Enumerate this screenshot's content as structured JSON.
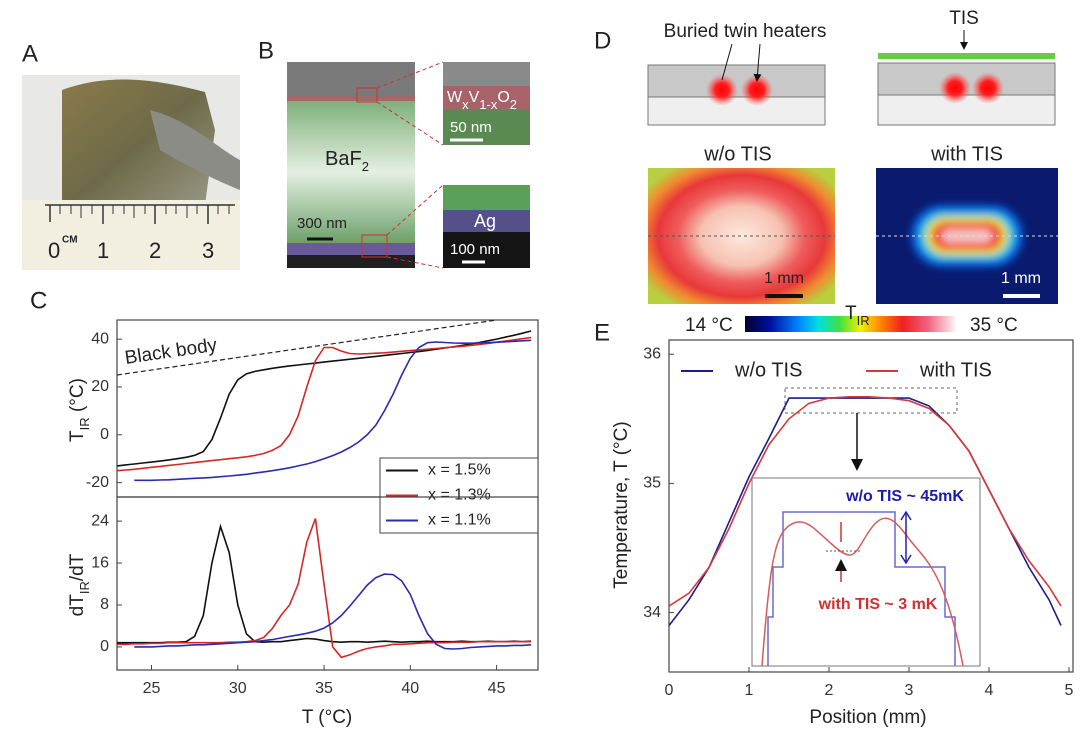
{
  "panel_labels": [
    "A",
    "B",
    "C",
    "D",
    "E"
  ],
  "panel_a": {
    "ruler": [
      "0",
      "CM",
      "1",
      "2",
      "3"
    ]
  },
  "panel_b": {
    "material": [
      "BaF",
      "2"
    ],
    "film": [
      "W",
      "x",
      "V",
      "1-x",
      "O",
      "2"
    ],
    "film_scale": "50 nm",
    "main_scale": "300 nm",
    "metal": "Ag",
    "metal_scale": "100 nm"
  },
  "panel_d": {
    "heaters_label": "Buried twin heaters",
    "tis_label": "TIS",
    "left_title": "w/o TIS",
    "right_title": "with TIS",
    "left_scale": "1 mm",
    "right_scale": "1 mm",
    "colorbar": {
      "min": "14 °C",
      "label": [
        "T",
        "IR"
      ],
      "max": "35 °C"
    }
  },
  "panel_e_inset": {
    "wo": "w/o TIS ~ 45mK",
    "with": "with TIS ~ 3 mK"
  },
  "chart_data": [
    {
      "type": "line",
      "y_label": [
        "T",
        "IR",
        " (°C)"
      ],
      "xlim": [
        23,
        47.4
      ],
      "ylim": [
        -26,
        48
      ],
      "yticks": [
        -20,
        0,
        20,
        40
      ],
      "reference": {
        "label": "Black body",
        "x": [
          23,
          45
        ],
        "y": [
          25,
          48
        ]
      },
      "legend": "lower right",
      "x": [
        23,
        23.5,
        24,
        24.5,
        25,
        25.5,
        26,
        26.5,
        27,
        27.5,
        28,
        28.5,
        29,
        29.5,
        30,
        30.5,
        31,
        31.5,
        32,
        32.5,
        33,
        33.5,
        34,
        34.5,
        35,
        35.5,
        36,
        36.5,
        37,
        37.5,
        38,
        38.5,
        39,
        39.5,
        40,
        40.5,
        41,
        41.5,
        42,
        42.5,
        43,
        43.5,
        44,
        44.5,
        45,
        45.5,
        46,
        46.5,
        47
      ],
      "series": [
        {
          "name": "x = 1.5%",
          "color": "#111111",
          "values": [
            -13,
            -12.6,
            -12.2,
            -11.8,
            -11.4,
            -11,
            -10.5,
            -10,
            -9.4,
            -8.6,
            -7,
            -2,
            7,
            17,
            23,
            25.5,
            26.5,
            27.2,
            27.8,
            28.3,
            28.8,
            29.2,
            29.6,
            30,
            30.4,
            30.8,
            31.2,
            31.6,
            32,
            32.4,
            32.8,
            33.2,
            33.6,
            34,
            34.4,
            34.8,
            35.3,
            35.8,
            36.3,
            36.8,
            37.4,
            38,
            38.6,
            39.3,
            40,
            40.8,
            41.6,
            42.5,
            43.4
          ]
        },
        {
          "name": "x = 1.3%",
          "color": "#d62728",
          "values": [
            -15,
            -14.7,
            -14.4,
            -14,
            -13.6,
            -13.2,
            -12.8,
            -12.4,
            -12,
            -11.6,
            -11.2,
            -10.8,
            -10.4,
            -10,
            -9.6,
            -9.2,
            -8.6,
            -7.8,
            -6.5,
            -4.5,
            0,
            8,
            20,
            31,
            36.5,
            36.5,
            35,
            34,
            33.8,
            33.9,
            34.1,
            34.3,
            34.6,
            34.9,
            35.2,
            35.5,
            35.8,
            36.1,
            36.4,
            36.7,
            37,
            37.4,
            37.8,
            38.2,
            38.7,
            39.2,
            39.7,
            40.2,
            40.7
          ]
        },
        {
          "name": "x = 1.1%",
          "color": "#2b2bb0",
          "values": [
            null,
            null,
            -19,
            -19,
            -19,
            -18.9,
            -18.8,
            -18.6,
            -18.4,
            -18.2,
            -18,
            -17.8,
            -17.5,
            -17.2,
            -16.9,
            -16.5,
            -16,
            -15.5,
            -15,
            -14.4,
            -13.8,
            -13,
            -12.2,
            -11.2,
            -10,
            -8.7,
            -7.2,
            -5.3,
            -3,
            0,
            4,
            10,
            17,
            25,
            32,
            36.5,
            38.5,
            38.8,
            38.6,
            38.4,
            38.3,
            38.3,
            38.4,
            38.5,
            38.7,
            38.9,
            39.1,
            39.3,
            39.5
          ]
        }
      ]
    },
    {
      "type": "line",
      "x_label": "T (°C)",
      "y_label": [
        "dT",
        "IR",
        "/dT"
      ],
      "xlim": [
        23,
        47.4
      ],
      "ylim": [
        -4.4,
        28.6
      ],
      "yticks": [
        0,
        8,
        16,
        24
      ],
      "xticks": [
        25,
        30,
        35,
        40,
        45
      ],
      "x": [
        23,
        23.5,
        24,
        24.5,
        25,
        25.5,
        26,
        26.5,
        27,
        27.5,
        28,
        28.5,
        29,
        29.5,
        30,
        30.5,
        31,
        31.5,
        32,
        32.5,
        33,
        33.5,
        34,
        34.5,
        35,
        35.5,
        36,
        36.5,
        37,
        37.5,
        38,
        38.5,
        39,
        39.5,
        40,
        40.5,
        41,
        41.5,
        42,
        42.5,
        43,
        43.5,
        44,
        44.5,
        45,
        45.5,
        46,
        46.5,
        47
      ],
      "series": [
        {
          "color": "#111111",
          "values": [
            0.8,
            0.8,
            0.8,
            0.8,
            0.8,
            0.8,
            0.9,
            0.9,
            1,
            2,
            6,
            16,
            23,
            18,
            8,
            2.5,
            1,
            0.9,
            1,
            1,
            1.2,
            1.4,
            1.6,
            1.5,
            1.2,
            1,
            0.9,
            1,
            1,
            0.9,
            1,
            1.1,
            1,
            0.9,
            1,
            1,
            1.1,
            1,
            1,
            1,
            1.1,
            1,
            1,
            1.1,
            1,
            1,
            1.1,
            1,
            1.1
          ]
        },
        {
          "color": "#d62728",
          "values": [
            0.5,
            0.5,
            0.6,
            0.6,
            0.7,
            0.7,
            0.8,
            0.8,
            0.8,
            0.8,
            0.8,
            0.8,
            0.8,
            0.9,
            0.9,
            1,
            1.2,
            1.8,
            3.5,
            6,
            8,
            12,
            20,
            24.5,
            12,
            0,
            -2,
            -1.5,
            -0.8,
            -0.3,
            0,
            0.2,
            0.5,
            0.5,
            0.6,
            0.7,
            0.8,
            0.8,
            0.8,
            0.9,
            0.9,
            0.9,
            1,
            1,
            1,
            1,
            1,
            1,
            1
          ]
        },
        {
          "color": "#2b2bb0",
          "values": [
            null,
            null,
            0,
            0,
            0,
            0.1,
            0.2,
            0.2,
            0.3,
            0.4,
            0.4,
            0.5,
            0.6,
            0.7,
            0.8,
            0.9,
            1,
            1.2,
            1.4,
            1.7,
            2,
            2.3,
            2.6,
            3,
            3.6,
            4.6,
            6,
            7.8,
            9.8,
            11.8,
            13.2,
            13.9,
            13.8,
            12.6,
            10,
            6,
            2.5,
            0.5,
            -0.3,
            -0.4,
            -0.3,
            -0.1,
            0,
            0.1,
            0.2,
            0.2,
            0.3,
            0.3,
            0.4
          ]
        }
      ]
    },
    {
      "type": "line",
      "x_label": "Position (mm)",
      "y_label": "Temperature, T (°C)",
      "xlim": [
        0,
        5.05
      ],
      "ylim": [
        33.54,
        36.11
      ],
      "xticks": [
        0,
        1,
        2,
        3,
        4,
        5
      ],
      "yticks": [
        34,
        35,
        36
      ],
      "legend": "top",
      "x": [
        0,
        0.25,
        0.5,
        0.75,
        1,
        1.25,
        1.5,
        1.75,
        2,
        2.25,
        2.5,
        2.75,
        3,
        3.25,
        3.5,
        3.75,
        4,
        4.25,
        4.5,
        4.75,
        4.9
      ],
      "series": [
        {
          "name": "w/o TIS",
          "color": "#1c1c8c",
          "values": [
            33.9,
            34.1,
            34.35,
            34.7,
            35.05,
            35.35,
            35.66,
            35.66,
            35.66,
            35.66,
            35.66,
            35.66,
            35.66,
            35.6,
            35.45,
            35.25,
            34.95,
            34.65,
            34.35,
            34.1,
            33.9
          ]
        },
        {
          "name": "with TIS",
          "color": "#d43a3a",
          "values": [
            34.05,
            34.15,
            34.35,
            34.65,
            35,
            35.3,
            35.5,
            35.62,
            35.66,
            35.67,
            35.67,
            35.66,
            35.64,
            35.58,
            35.45,
            35.25,
            34.95,
            34.65,
            34.4,
            34.2,
            34.05
          ]
        }
      ]
    }
  ]
}
